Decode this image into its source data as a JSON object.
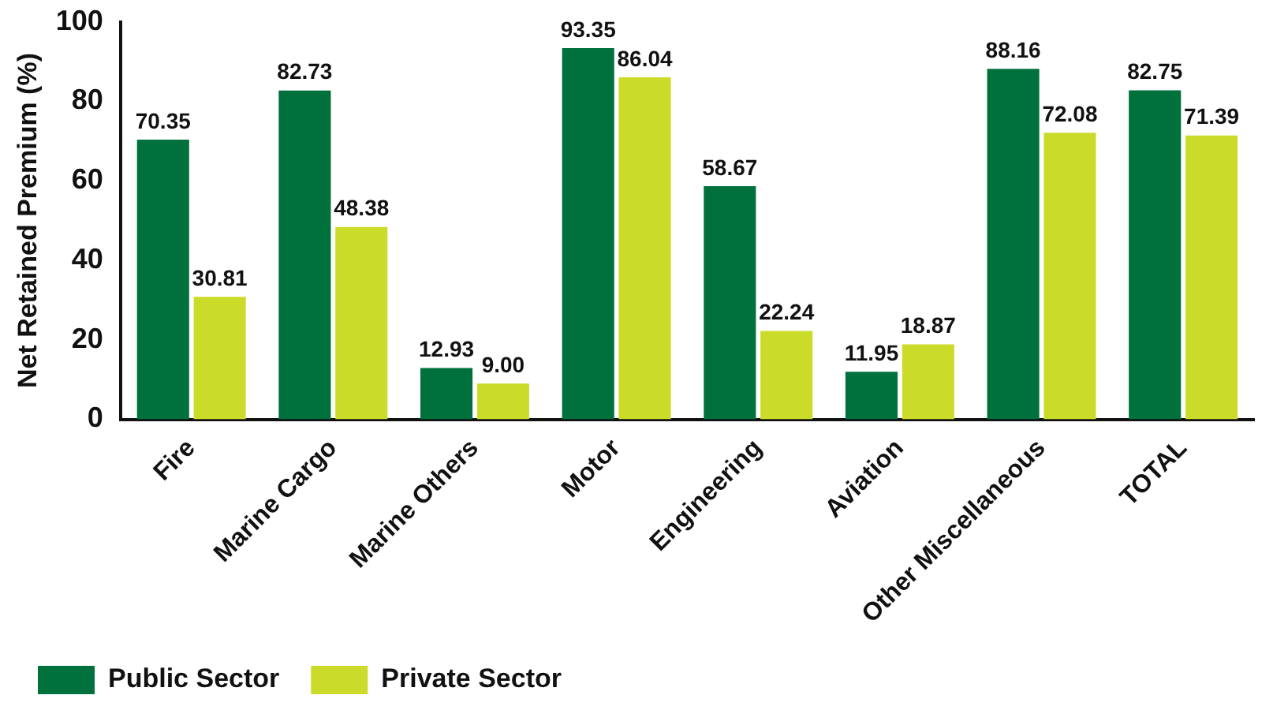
{
  "chart_data": {
    "type": "bar",
    "ylabel": "Net Retained Premium (%)",
    "categories": [
      "Fire",
      "Marine Cargo",
      "Marine Others",
      "Motor",
      "Engineering",
      "Aviation",
      "Other Miscellaneous",
      "TOTAL"
    ],
    "series": [
      {
        "name": "Public Sector",
        "color": "#00703c",
        "values": [
          70.35,
          82.73,
          12.93,
          93.35,
          58.67,
          11.95,
          88.16,
          82.75
        ]
      },
      {
        "name": "Private Sector",
        "color": "#cbdb2a",
        "values": [
          30.81,
          48.38,
          9.0,
          86.04,
          22.24,
          18.87,
          72.08,
          71.39
        ]
      }
    ],
    "value_labels": [
      [
        "70.35",
        "82.73",
        "12.93",
        "93.35",
        "58.67",
        "11.95",
        "88.16",
        "82.75"
      ],
      [
        "30.81",
        "48.38",
        "9.00",
        "86.04",
        "22.24",
        "18.87",
        "72.08",
        "71.39"
      ]
    ],
    "ylim": [
      0,
      100
    ],
    "yticks": [
      0,
      20,
      40,
      60,
      80,
      100
    ],
    "grid": false,
    "legend": "bottom left"
  }
}
